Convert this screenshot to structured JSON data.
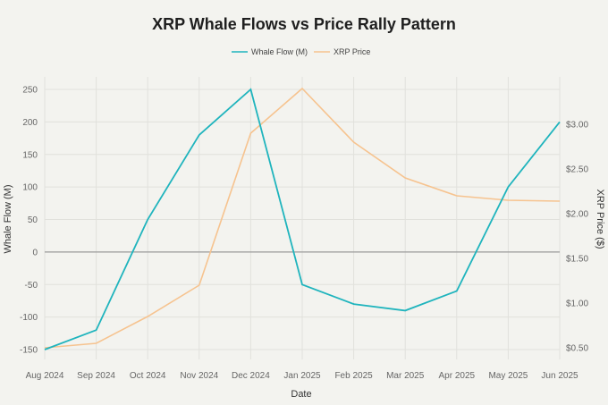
{
  "chart_data": {
    "type": "line",
    "title": "XRP Whale Flows vs Price Rally Pattern",
    "xlabel": "Date",
    "ylabel_left": "Whale Flow (M)",
    "ylabel_right": "XRP Price ($)",
    "categories": [
      "Aug 2024",
      "Sep 2024",
      "Oct 2024",
      "Nov 2024",
      "Dec 2024",
      "Jan 2025",
      "Feb 2025",
      "Mar 2025",
      "Apr 2025",
      "May 2025",
      "Jun 2025"
    ],
    "series": [
      {
        "name": "Whale Flow (M)",
        "axis": "left",
        "color": "#1fb4bd",
        "values": [
          -150,
          -120,
          50,
          180,
          250,
          -50,
          -80,
          -90,
          -60,
          100,
          200
        ]
      },
      {
        "name": "XRP Price",
        "axis": "right",
        "color": "#f6c38f",
        "values": [
          0.5,
          0.55,
          0.85,
          1.2,
          2.9,
          3.4,
          2.8,
          2.4,
          2.2,
          2.15,
          2.14
        ]
      }
    ],
    "ylim_left": [
      -160,
      260
    ],
    "yticks_left": [
      250,
      200,
      150,
      100,
      50,
      0,
      -50,
      -100,
      -150
    ],
    "yticks_right": [
      {
        "value": 3.0,
        "label": "$3.00"
      },
      {
        "value": 2.5,
        "label": "$2.50"
      },
      {
        "value": 2.0,
        "label": "$2.00"
      },
      {
        "value": 1.5,
        "label": "$1.50"
      },
      {
        "value": 1.0,
        "label": "$1.00"
      },
      {
        "value": 0.5,
        "label": "$0.50"
      }
    ],
    "zero_line_color": "#9a9a9a",
    "grid": true,
    "legend": {
      "position": "top-center",
      "entries": [
        "Whale Flow (M)",
        "XRP Price"
      ]
    }
  }
}
